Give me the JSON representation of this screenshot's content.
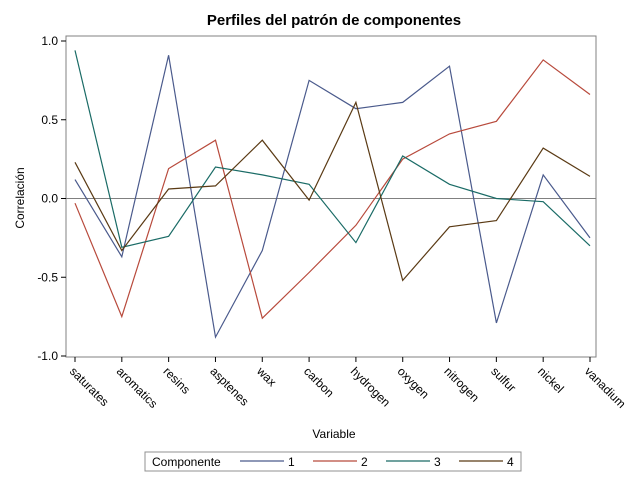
{
  "chart_data": {
    "type": "line",
    "title": "Perfiles del patrón de componentes",
    "xlabel": "Variable",
    "ylabel": "Correlación",
    "categories": [
      "saturates",
      "aromatics",
      "resins",
      "asptenes",
      "wax",
      "carbon",
      "hydrogen",
      "oxygen",
      "nitrogen",
      "sulfur",
      "nickel",
      "vanadium"
    ],
    "ylim": [
      -1.0,
      1.0
    ],
    "yticks": [
      "-1.0",
      "-0.5",
      "0.0",
      "0.5",
      "1.0"
    ],
    "reference_line": 0.0,
    "grid": false,
    "legend": {
      "title": "Componente",
      "placement": "bottom"
    },
    "series": [
      {
        "name": "1",
        "color": "#4a5a8c",
        "values": [
          0.12,
          -0.37,
          0.91,
          -0.88,
          -0.33,
          0.75,
          0.57,
          0.61,
          0.84,
          -0.79,
          0.15,
          -0.25
        ]
      },
      {
        "name": "2",
        "color": "#b84a3c",
        "values": [
          -0.03,
          -0.75,
          0.19,
          0.37,
          -0.76,
          -0.47,
          -0.17,
          0.25,
          0.41,
          0.49,
          0.88,
          0.66
        ]
      },
      {
        "name": "3",
        "color": "#1a6b66",
        "values": [
          0.94,
          -0.31,
          -0.24,
          0.2,
          0.15,
          0.09,
          -0.28,
          0.27,
          0.09,
          0.0,
          -0.02,
          -0.3
        ]
      },
      {
        "name": "4",
        "color": "#5a3a14",
        "values": [
          0.23,
          -0.33,
          0.06,
          0.08,
          0.37,
          -0.01,
          0.61,
          -0.52,
          -0.18,
          -0.14,
          0.32,
          0.14
        ]
      }
    ]
  }
}
